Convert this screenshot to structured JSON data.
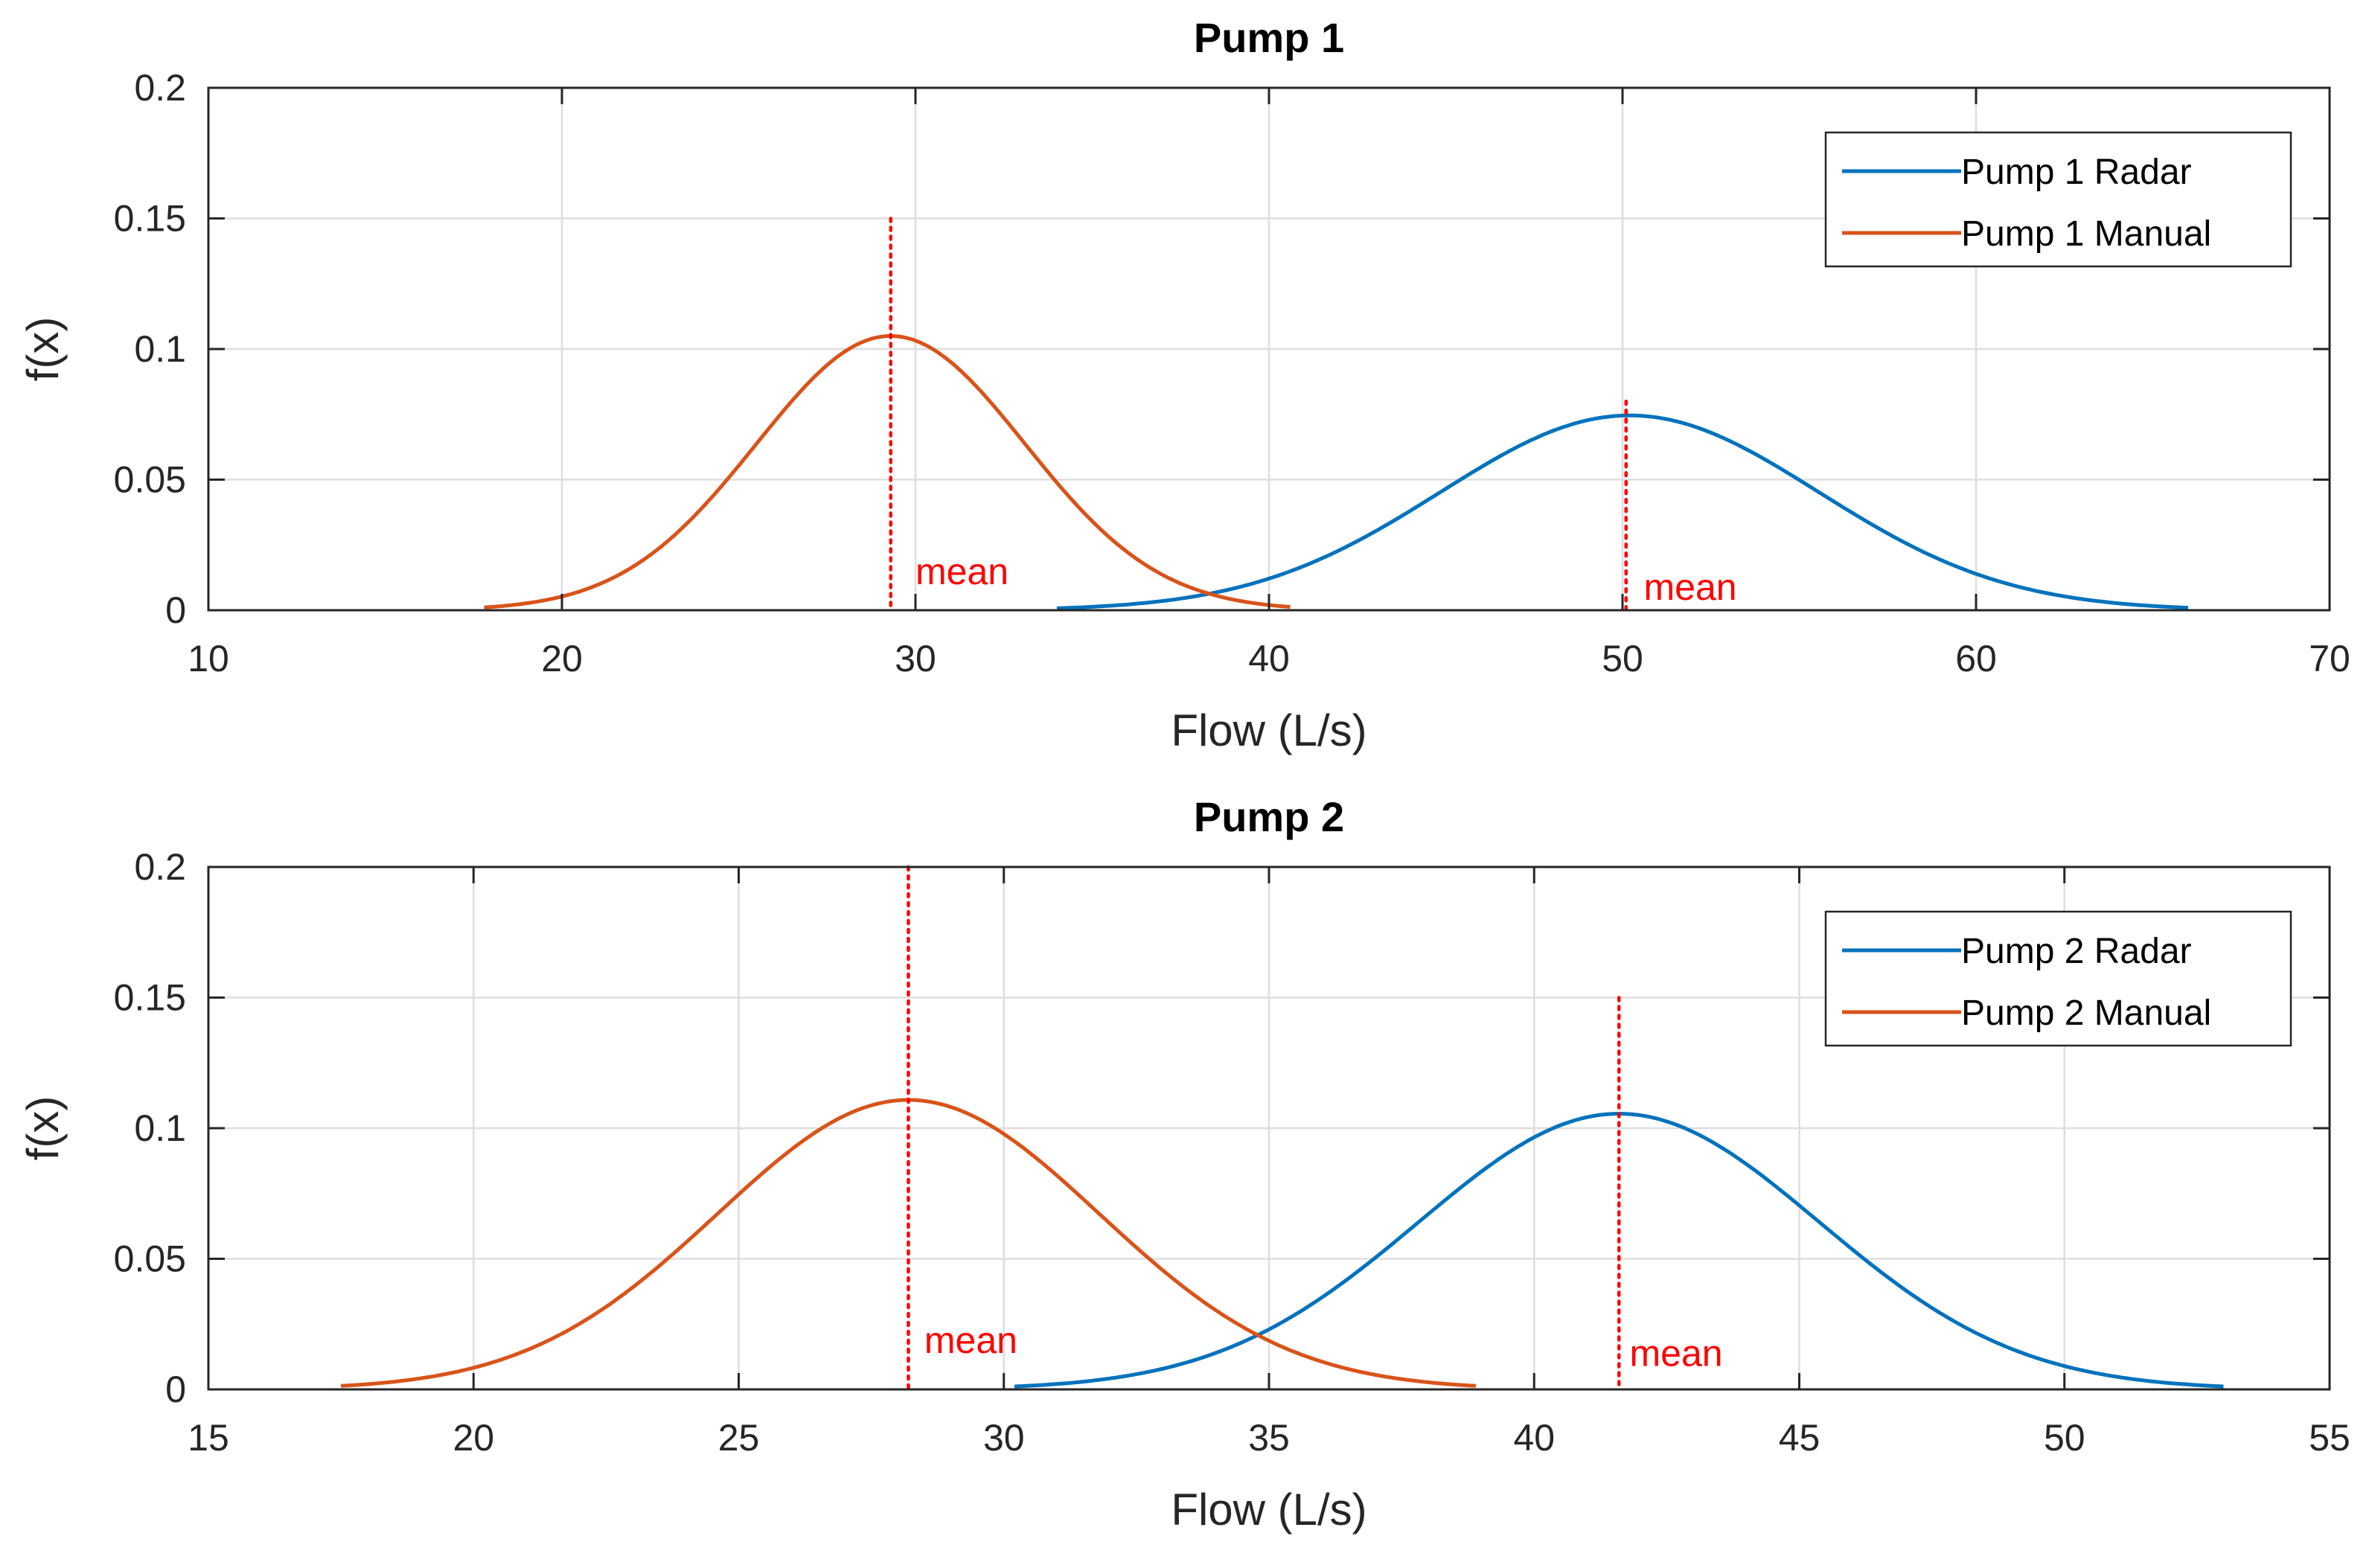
{
  "chart_data": [
    {
      "type": "line",
      "title": "Pump 1",
      "xlabel": "Flow (L/s)",
      "ylabel": "f(x)",
      "xlim": [
        10,
        70
      ],
      "ylim": [
        0,
        0.2
      ],
      "xticks": [
        10,
        20,
        30,
        40,
        50,
        60,
        70
      ],
      "yticks": [
        0,
        0.05,
        0.1,
        0.15,
        0.2
      ],
      "xtick_labels": [
        "10",
        "20",
        "30",
        "40",
        "50",
        "60",
        "70"
      ],
      "ytick_labels": [
        "0",
        "0.05",
        "0.1",
        "0.15",
        "0.2"
      ],
      "grid": true,
      "legend_position": "top-right",
      "series": [
        {
          "name": "Pump 1 Radar",
          "color": "#0072BD",
          "distribution": "normal",
          "mean": 50.2,
          "std": 5.35,
          "x_range": [
            34,
            66
          ]
        },
        {
          "name": "Pump 1 Manual",
          "color": "#D95319",
          "distribution": "normal",
          "mean": 29.3,
          "std": 3.8,
          "x_range": [
            17.8,
            40.6
          ]
        }
      ],
      "mean_lines": [
        {
          "x": 29.3,
          "y_top": 0.15,
          "label": "mean",
          "label_x": 30.0,
          "label_y": 0.01,
          "color": "#FF0000"
        },
        {
          "x": 50.1,
          "y_top": 0.08,
          "label": "mean",
          "label_x": 50.6,
          "label_y": 0.004,
          "color": "#FF0000"
        }
      ]
    },
    {
      "type": "line",
      "title": "Pump 2",
      "xlabel": "Flow (L/s)",
      "ylabel": "f(x)",
      "xlim": [
        15,
        55
      ],
      "ylim": [
        0,
        0.2
      ],
      "xticks": [
        15,
        20,
        25,
        30,
        35,
        40,
        45,
        50,
        55
      ],
      "yticks": [
        0,
        0.05,
        0.1,
        0.15,
        0.2
      ],
      "xtick_labels": [
        "15",
        "20",
        "25",
        "30",
        "35",
        "40",
        "45",
        "50",
        "55"
      ],
      "ytick_labels": [
        "0",
        "0.05",
        "0.1",
        "0.15",
        "0.2"
      ],
      "grid": true,
      "legend_position": "top-right",
      "series": [
        {
          "name": "Pump 2 Radar",
          "color": "#0072BD",
          "distribution": "normal",
          "mean": 41.6,
          "std": 3.78,
          "x_range": [
            30.2,
            53
          ]
        },
        {
          "name": "Pump 2 Manual",
          "color": "#D95319",
          "distribution": "normal",
          "mean": 28.2,
          "std": 3.6,
          "x_range": [
            17.5,
            38.9
          ]
        }
      ],
      "mean_lines": [
        {
          "x": 28.2,
          "y_top": 0.2,
          "label": "mean",
          "label_x": 28.5,
          "label_y": 0.014,
          "color": "#FF0000"
        },
        {
          "x": 41.6,
          "y_top": 0.15,
          "label": "mean",
          "label_x": 41.8,
          "label_y": 0.009,
          "color": "#FF0000"
        }
      ]
    }
  ]
}
